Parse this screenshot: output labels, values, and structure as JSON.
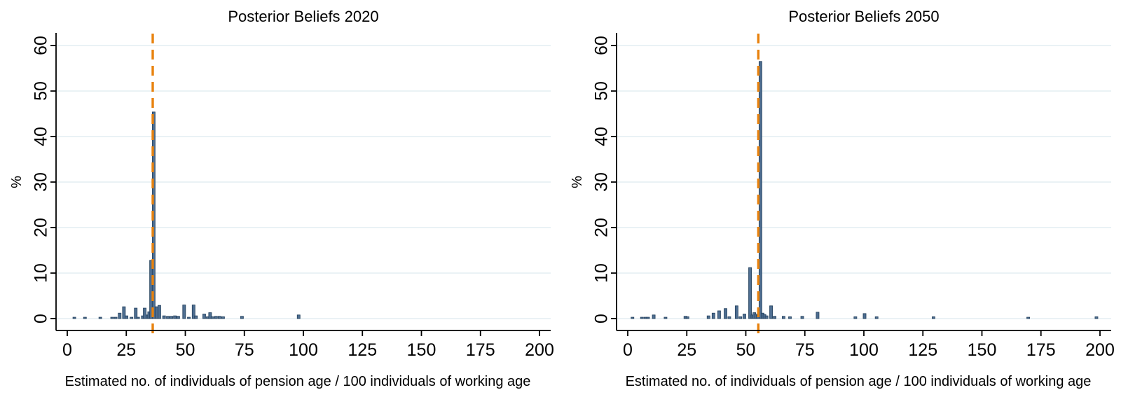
{
  "figure": {
    "background": "#ffffff"
  },
  "colors": {
    "bar_fill": "#4e6e91",
    "bar_stroke": "#223f5c",
    "vline": "#e8820e",
    "grid": "#e3edf2",
    "axis": "#000000",
    "title": "#27437e",
    "text": "#000000"
  },
  "chart_data": [
    {
      "type": "bar",
      "subtype": "histogram",
      "title": "Posterior Beliefs 2020",
      "xlabel": "Estimated no. of individuals of pension age / 100 individuals of working age",
      "ylabel": "%",
      "xlim": [
        -5,
        205
      ],
      "ylim": [
        0,
        60
      ],
      "xticks": [
        0,
        25,
        50,
        75,
        100,
        125,
        150,
        175,
        200
      ],
      "yticks": [
        0,
        10,
        20,
        30,
        40,
        50,
        60
      ],
      "grid": "horizontal",
      "legend": "none",
      "bin_width": 1.2,
      "vline_x": 36.2,
      "x": [
        3,
        7.5,
        14,
        19,
        20.5,
        22.2,
        24,
        25.1,
        27.2,
        29,
        30,
        32,
        32.8,
        34,
        34.7,
        35.5,
        36.6,
        37.8,
        39,
        41,
        42.6,
        44.1,
        45.6,
        47,
        49.5,
        51.5,
        53.5,
        54.5,
        58,
        59.5,
        60.5,
        61.5,
        63,
        64.5,
        66,
        74,
        98
      ],
      "values": [
        0.3,
        0.3,
        0.3,
        0.3,
        0.3,
        1.2,
        2.6,
        0.6,
        0.3,
        2.3,
        0.3,
        0.6,
        2.3,
        0.8,
        1.5,
        12.8,
        45.4,
        2.6,
        2.9,
        0.6,
        0.5,
        0.5,
        0.6,
        0.5,
        3.0,
        0.3,
        3.0,
        0.6,
        1.0,
        0.4,
        1.3,
        0.4,
        0.5,
        0.5,
        0.4,
        0.5,
        0.8
      ]
    },
    {
      "type": "bar",
      "subtype": "histogram",
      "title": "Posterior Beliefs 2050",
      "xlabel": "Estimated no. of individuals of pension age / 100 individuals of working age",
      "ylabel": "%",
      "xlim": [
        -5,
        205
      ],
      "ylim": [
        0,
        60
      ],
      "xticks": [
        0,
        25,
        50,
        75,
        100,
        125,
        150,
        175,
        200
      ],
      "yticks": [
        0,
        10,
        20,
        30,
        40,
        50,
        60
      ],
      "grid": "horizontal",
      "legend": "none",
      "bin_width": 1.2,
      "vline_x": 55.3,
      "x": [
        2,
        6,
        7.5,
        8.6,
        11,
        16,
        24.4,
        25.3,
        34.2,
        36.3,
        38.7,
        41.4,
        43,
        46.1,
        47.7,
        49.4,
        51.8,
        52.8,
        53.6,
        54.4,
        55.1,
        56.2,
        57.1,
        57.9,
        58.8,
        60.7,
        62.2,
        66,
        68.7,
        73.9,
        80.4,
        96.4,
        100.3,
        105.4,
        129.5,
        169.6,
        198.5
      ],
      "values": [
        0.3,
        0.3,
        0.3,
        0.3,
        0.8,
        0.3,
        0.5,
        0.4,
        0.6,
        1.2,
        1.7,
        2.2,
        0.4,
        2.8,
        0.4,
        1.0,
        11.2,
        0.8,
        1.3,
        1.0,
        0.7,
        56.5,
        1.2,
        0.9,
        0.6,
        2.8,
        0.5,
        0.5,
        0.4,
        0.5,
        1.4,
        0.4,
        1.1,
        0.4,
        0.4,
        0.3,
        0.4
      ]
    }
  ]
}
